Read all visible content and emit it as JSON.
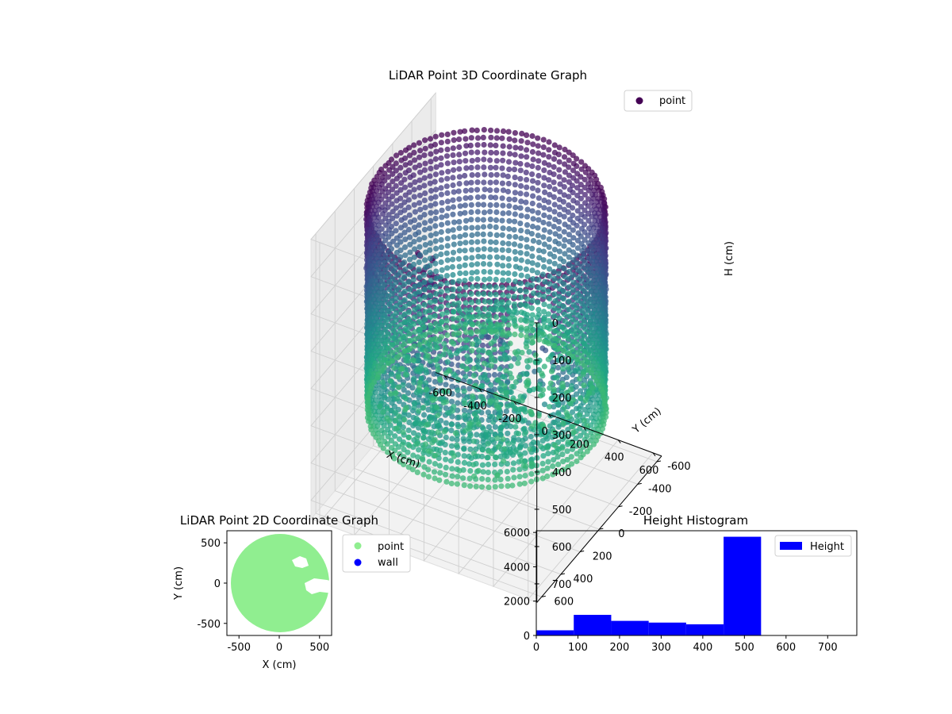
{
  "chart_data": [
    {
      "type": "scatter",
      "projection": "3d",
      "title": "LiDAR Point 3D Coordinate Graph",
      "xlabel": "X (cm)",
      "ylabel": "Y (cm)",
      "zlabel": "H (cm)",
      "xlim": [
        -650,
        650
      ],
      "ylim": [
        -650,
        650
      ],
      "zlim": [
        0,
        750
      ],
      "z_inverted": true,
      "xticks": [
        "-600",
        "-400",
        "-200",
        "0",
        "200",
        "400",
        "600"
      ],
      "yticks": [
        "-600",
        "-400",
        "-200",
        "0",
        "200",
        "400",
        "600"
      ],
      "zticks": [
        "0",
        "100",
        "200",
        "300",
        "400",
        "500",
        "600",
        "700"
      ],
      "legend": [
        "point"
      ],
      "legend_position": "top-right",
      "grid": true,
      "colormap": "viridis",
      "description_of_points": "cylindrical wall of points, radius about 600 cm, height 0 to about 530 cm, with a gap in the wall near x 100..500, y 100..450, plus scattered interior points"
    },
    {
      "type": "scatter",
      "title": "LiDAR Point 2D Coordinate Graph",
      "xlabel": "X (cm)",
      "ylabel": "Y (cm)",
      "xlim": [
        -650,
        650
      ],
      "ylim": [
        -650,
        650
      ],
      "xticks": [
        "-500",
        "0",
        "500"
      ],
      "yticks": [
        "-500",
        "0",
        "500"
      ],
      "legend": [
        "point",
        "wall"
      ],
      "legend_position": "outside-right",
      "series_colors": {
        "point": "#90ee90",
        "wall": "#0000ff"
      },
      "grid": false
    },
    {
      "type": "bar",
      "title": "Height Histogram",
      "legend": [
        "Height"
      ],
      "legend_position": "top-right",
      "bar_color": "#0000ff",
      "bin_edges": [
        0,
        90,
        180,
        270,
        360,
        450,
        540,
        630,
        720,
        770
      ],
      "values": [
        300,
        1200,
        850,
        750,
        650,
        5750,
        0,
        0,
        0
      ],
      "xlim": [
        0,
        770
      ],
      "ylim": [
        0,
        6100
      ],
      "xticks": [
        "0",
        "100",
        "200",
        "300",
        "400",
        "500",
        "600",
        "700"
      ],
      "yticks": [
        "0",
        "2000",
        "4000",
        "6000"
      ],
      "grid": false
    }
  ]
}
